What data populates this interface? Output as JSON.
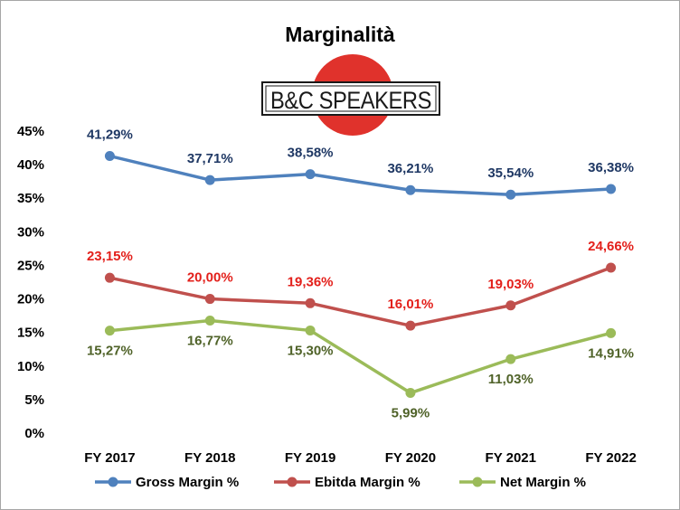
{
  "chart_data": {
    "type": "line",
    "title": "Marginalità",
    "logo": {
      "text": "B&C SPEAKERS",
      "circle_color": "#e0322c"
    },
    "categories": [
      "FY 2017",
      "FY 2018",
      "FY 2019",
      "FY 2020",
      "FY 2021",
      "FY 2022"
    ],
    "ylim": [
      0,
      45
    ],
    "yticks": [
      {
        "value": 0,
        "label": "0%"
      },
      {
        "value": 5,
        "label": "5%"
      },
      {
        "value": 10,
        "label": "10%"
      },
      {
        "value": 15,
        "label": "15%"
      },
      {
        "value": 20,
        "label": "20%"
      },
      {
        "value": 25,
        "label": "25%"
      },
      {
        "value": 30,
        "label": "30%"
      },
      {
        "value": 35,
        "label": "35%"
      },
      {
        "value": 40,
        "label": "40%"
      },
      {
        "value": 45,
        "label": "45%"
      }
    ],
    "grid": false,
    "legend_position": "bottom",
    "series": [
      {
        "name": "Gross Margin %",
        "color": "#4f81bd",
        "label_color": "#1f3864",
        "label_position": "above",
        "values": [
          41.29,
          37.71,
          38.58,
          36.21,
          35.54,
          36.38
        ],
        "labels": [
          "41,29%",
          "37,71%",
          "38,58%",
          "36,21%",
          "35,54%",
          "36,38%"
        ]
      },
      {
        "name": "Ebitda Margin %",
        "color": "#c0504d",
        "label_color": "#e3201b",
        "label_position": "above",
        "values": [
          23.15,
          20.0,
          19.36,
          16.01,
          19.03,
          24.66
        ],
        "labels": [
          "23,15%",
          "20,00%",
          "19,36%",
          "16,01%",
          "19,03%",
          "24,66%"
        ]
      },
      {
        "name": "Net Margin %",
        "color": "#9bbb59",
        "label_color": "#4f6228",
        "label_position": "below",
        "values": [
          15.27,
          16.77,
          15.3,
          5.99,
          11.03,
          14.91
        ],
        "labels": [
          "15,27%",
          "16,77%",
          "15,30%",
          "5,99%",
          "11,03%",
          "14,91%"
        ]
      }
    ]
  }
}
